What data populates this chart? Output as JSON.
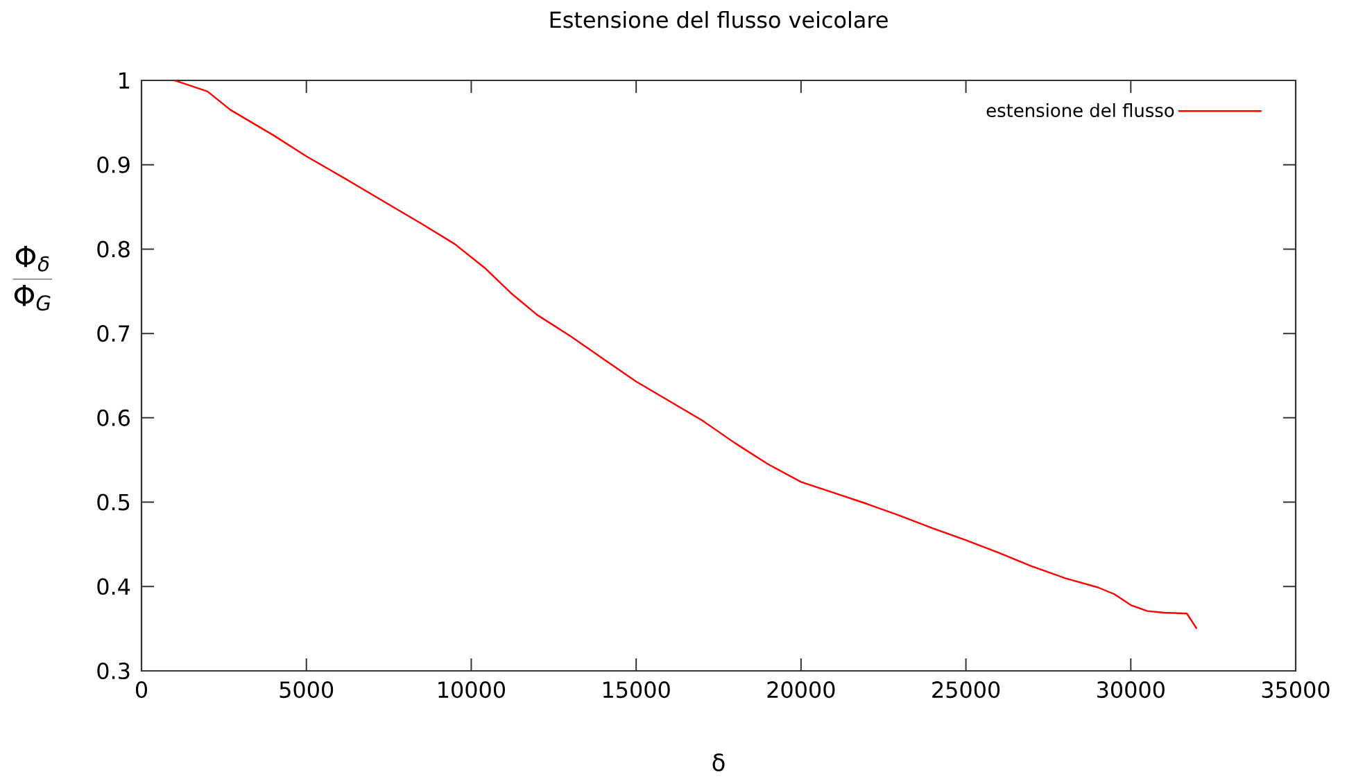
{
  "chart_data": {
    "type": "line",
    "title": "Estensione del flusso veicolare",
    "xlabel": "δ",
    "ylabel": "\\frac{\\Phi_{\\delta}}{\\Phi_{G}}",
    "xlim": [
      0,
      35000
    ],
    "ylim": [
      0.3,
      1
    ],
    "xticks": [
      0,
      5000,
      10000,
      15000,
      20000,
      25000,
      30000,
      35000
    ],
    "yticks": [
      0.3,
      0.4,
      0.5,
      0.6,
      0.7,
      0.8,
      0.9,
      1
    ],
    "legend": "top right",
    "series": [
      {
        "name": "estensione del flusso",
        "color": "#ff0000",
        "x": [
          1000,
          2000,
          2700,
          4000,
          5000,
          6200,
          7500,
          8500,
          9500,
          10400,
          11200,
          12000,
          13000,
          14000,
          15000,
          16000,
          17000,
          18000,
          19000,
          20000,
          21000,
          22000,
          23000,
          24000,
          25000,
          26000,
          27000,
          28000,
          29000,
          29500,
          30000,
          30500,
          31000,
          31700,
          32000
        ],
        "values": [
          1.0,
          0.987,
          0.965,
          0.935,
          0.91,
          0.883,
          0.853,
          0.83,
          0.806,
          0.778,
          0.748,
          0.722,
          0.697,
          0.67,
          0.643,
          0.62,
          0.597,
          0.57,
          0.545,
          0.524,
          0.511,
          0.498,
          0.484,
          0.469,
          0.455,
          0.44,
          0.424,
          0.41,
          0.399,
          0.391,
          0.378,
          0.371,
          0.369,
          0.368,
          0.35
        ]
      }
    ]
  }
}
